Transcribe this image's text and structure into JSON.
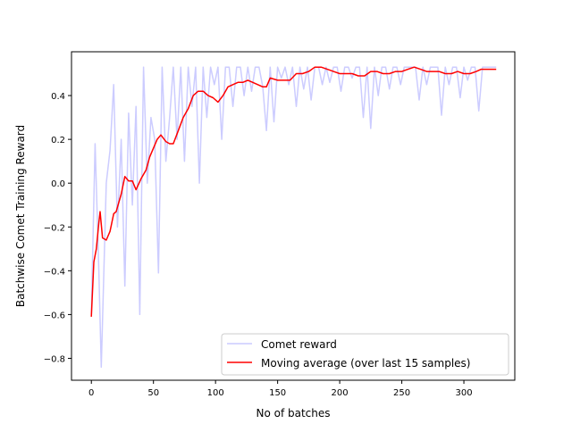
{
  "chart_data": {
    "type": "line",
    "title": "",
    "xlabel": "No of batches",
    "ylabel": "Batchwise Comet Training Reward",
    "xlim": [
      -16,
      341
    ],
    "ylim": [
      -0.9,
      0.6
    ],
    "xticks": [
      0,
      50,
      100,
      150,
      200,
      250,
      300
    ],
    "yticks": [
      -0.8,
      -0.6,
      -0.4,
      -0.2,
      0.0,
      0.2,
      0.4
    ],
    "ytick_labels": [
      "−0.8",
      "−0.6",
      "−0.4",
      "−0.2",
      "0.0",
      "0.2",
      "0.4"
    ],
    "grid": false,
    "legend_position": "lower-right",
    "series": [
      {
        "name": "Comet reward",
        "color": "#ccccff",
        "x": [
          0,
          3,
          6,
          8,
          12,
          15,
          18,
          21,
          24,
          27,
          30,
          33,
          36,
          39,
          42,
          45,
          48,
          51,
          54,
          57,
          60,
          63,
          66,
          69,
          72,
          75,
          78,
          81,
          84,
          87,
          90,
          93,
          96,
          99,
          102,
          105,
          108,
          111,
          114,
          117,
          120,
          123,
          126,
          129,
          132,
          135,
          138,
          141,
          144,
          147,
          150,
          153,
          156,
          159,
          162,
          165,
          168,
          171,
          174,
          177,
          180,
          183,
          186,
          189,
          192,
          195,
          198,
          201,
          204,
          207,
          210,
          213,
          216,
          219,
          222,
          225,
          228,
          231,
          234,
          237,
          240,
          243,
          246,
          249,
          252,
          255,
          258,
          261,
          264,
          267,
          270,
          273,
          276,
          279,
          282,
          285,
          288,
          291,
          294,
          297,
          300,
          303,
          306,
          309,
          312,
          315,
          318,
          321,
          324,
          326
        ],
        "values": [
          -0.6,
          0.18,
          -0.4,
          -0.84,
          0.0,
          0.15,
          0.45,
          -0.2,
          0.2,
          -0.47,
          0.32,
          -0.1,
          0.35,
          -0.6,
          0.53,
          0.0,
          0.3,
          0.2,
          -0.41,
          0.53,
          0.1,
          0.3,
          0.53,
          0.2,
          0.53,
          0.1,
          0.53,
          0.35,
          0.53,
          0.0,
          0.53,
          0.3,
          0.53,
          0.45,
          0.53,
          0.2,
          0.53,
          0.53,
          0.35,
          0.53,
          0.53,
          0.4,
          0.53,
          0.42,
          0.53,
          0.53,
          0.44,
          0.24,
          0.53,
          0.28,
          0.53,
          0.48,
          0.53,
          0.45,
          0.53,
          0.35,
          0.53,
          0.43,
          0.53,
          0.38,
          0.53,
          0.53,
          0.45,
          0.53,
          0.46,
          0.53,
          0.53,
          0.42,
          0.53,
          0.53,
          0.48,
          0.53,
          0.53,
          0.3,
          0.53,
          0.25,
          0.53,
          0.4,
          0.53,
          0.53,
          0.43,
          0.53,
          0.53,
          0.45,
          0.53,
          0.53,
          0.53,
          0.53,
          0.38,
          0.53,
          0.45,
          0.53,
          0.53,
          0.53,
          0.31,
          0.53,
          0.45,
          0.53,
          0.53,
          0.39,
          0.53,
          0.47,
          0.53,
          0.53,
          0.33,
          0.53,
          0.53,
          0.53,
          0.53,
          0.53
        ]
      },
      {
        "name": "Moving average (over last 15 samples)",
        "color": "#ff0000",
        "x": [
          0,
          2,
          4,
          6,
          7,
          9,
          12,
          15,
          18,
          20,
          24,
          27,
          30,
          33,
          36,
          40,
          44,
          47,
          50,
          53,
          56,
          60,
          63,
          66,
          70,
          74,
          78,
          82,
          86,
          90,
          94,
          98,
          102,
          106,
          110,
          114,
          118,
          122,
          126,
          130,
          134,
          138,
          141,
          144,
          150,
          155,
          160,
          165,
          170,
          175,
          180,
          185,
          190,
          195,
          200,
          205,
          210,
          215,
          220,
          225,
          230,
          235,
          240,
          245,
          250,
          255,
          260,
          265,
          270,
          275,
          280,
          285,
          290,
          295,
          300,
          305,
          310,
          314,
          318,
          326
        ],
        "values": [
          -0.61,
          -0.36,
          -0.3,
          -0.18,
          -0.13,
          -0.25,
          -0.26,
          -0.22,
          -0.14,
          -0.13,
          -0.05,
          0.03,
          0.01,
          0.01,
          -0.03,
          0.02,
          0.06,
          0.12,
          0.16,
          0.2,
          0.22,
          0.19,
          0.18,
          0.18,
          0.24,
          0.3,
          0.34,
          0.4,
          0.42,
          0.42,
          0.4,
          0.39,
          0.37,
          0.4,
          0.44,
          0.45,
          0.46,
          0.46,
          0.47,
          0.46,
          0.45,
          0.44,
          0.44,
          0.48,
          0.47,
          0.47,
          0.47,
          0.5,
          0.5,
          0.51,
          0.53,
          0.53,
          0.52,
          0.51,
          0.5,
          0.5,
          0.5,
          0.49,
          0.49,
          0.51,
          0.51,
          0.5,
          0.5,
          0.51,
          0.51,
          0.52,
          0.53,
          0.52,
          0.51,
          0.51,
          0.51,
          0.5,
          0.5,
          0.51,
          0.5,
          0.5,
          0.51,
          0.52,
          0.52,
          0.52
        ]
      }
    ]
  }
}
